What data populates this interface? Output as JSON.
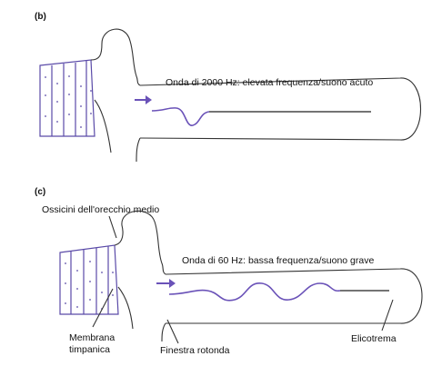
{
  "panels": [
    {
      "id": "b",
      "label": "(b)",
      "wave_caption": "Onda di 2000 Hz: elevata frequenza/suono acuto"
    },
    {
      "id": "c",
      "label": "(c)",
      "wave_caption": "Onda di 60 Hz: bassa frequenza/suono grave",
      "annotations": {
        "ossicles": "Ossicini dell'orecchio medio",
        "eardrum_line1": "Membrana",
        "eardrum_line2": "timpanica",
        "round_window": "Finestra rotonda",
        "helicotrema": "Elicotrema"
      }
    }
  ],
  "colors": {
    "wave": "#6a52b8",
    "outline": "#333333",
    "ear_canal": "#5a4aa8"
  }
}
